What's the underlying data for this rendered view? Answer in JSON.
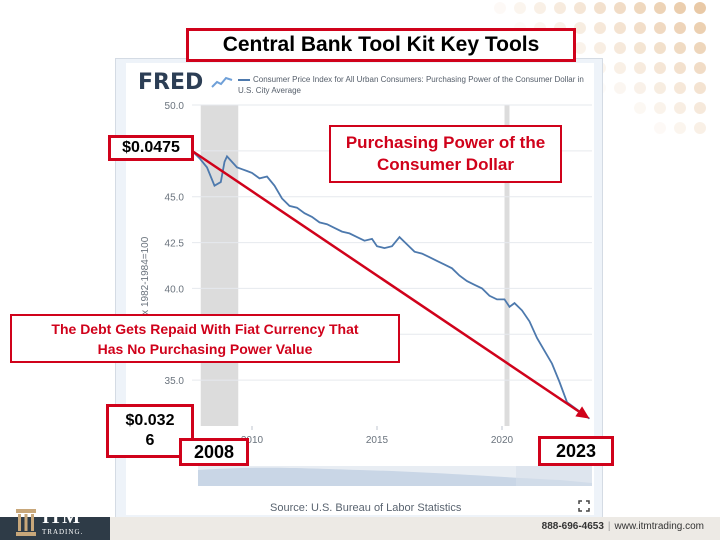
{
  "slide": {
    "title": "Central Bank Tool Kit Key Tools",
    "source": "Source: U.S. Bureau of Labor Statistics",
    "footer_phone": "888-696-4653",
    "footer_web": "www.itmtrading.com",
    "logo_text": "ITM",
    "logo_sub": "TRADING."
  },
  "fred": {
    "logo": "FRED",
    "legend": "Consumer Price Index for All Urban Consumers: Purchasing Power of the Consumer Dollar in U.S. City Average"
  },
  "annotations": {
    "start_value": "$0.0475",
    "end_value": "$0.032\n6",
    "start_year": "2008",
    "end_year": "2023",
    "headline": "Purchasing Power of the Consumer Dollar",
    "message": "The Debt Gets Repaid With Fiat Currency That Has No Purchasing Power Value"
  },
  "colors": {
    "accent_red": "#d0021b",
    "series_blue": "#4d79ad",
    "recession_gray": "#dcdcdc"
  },
  "chart_data": {
    "type": "line",
    "ylabel": "Index 1982-1984=100",
    "ylim": [
      32.5,
      50.0
    ],
    "xlim": [
      2007.6,
      2023.6
    ],
    "yticks": [
      35.0,
      37.5,
      40.0,
      42.5,
      45.0,
      47.5,
      50.0
    ],
    "ytick_labels": [
      "35.0",
      "",
      "40.0",
      "42.5",
      "45.0",
      "",
      "50.0"
    ],
    "xticks": [
      2010,
      2015,
      2020
    ],
    "xtick_labels": [
      "2010",
      "2015",
      "2020"
    ],
    "recession_shading": [
      [
        2007.95,
        2009.45
      ],
      [
        2020.1,
        2020.3
      ]
    ],
    "series": [
      {
        "x": [
          2007.6,
          2007.9,
          2008.2,
          2008.5,
          2008.75,
          2008.9,
          2009.0,
          2009.2,
          2009.4,
          2009.6,
          2009.8,
          2010.0,
          2010.3,
          2010.6,
          2010.9,
          2011.2,
          2011.5,
          2011.8,
          2012.1,
          2012.4,
          2012.7,
          2013.0,
          2013.3,
          2013.6,
          2013.9,
          2014.2,
          2014.5,
          2014.8,
          2015.0,
          2015.3,
          2015.6,
          2015.9,
          2016.2,
          2016.5,
          2016.8,
          2017.1,
          2017.4,
          2017.7,
          2018.0,
          2018.3,
          2018.6,
          2018.9,
          2019.2,
          2019.5,
          2019.8,
          2020.1,
          2020.3,
          2020.5,
          2020.8,
          2021.1,
          2021.4,
          2021.7,
          2022.0,
          2022.3,
          2022.6,
          2022.9,
          2023.2,
          2023.5
        ],
        "values": [
          47.5,
          47.1,
          46.6,
          45.6,
          45.8,
          46.9,
          47.2,
          46.9,
          46.6,
          46.5,
          46.4,
          46.3,
          46.0,
          46.1,
          45.6,
          44.9,
          44.5,
          44.4,
          44.1,
          43.9,
          43.6,
          43.5,
          43.3,
          43.1,
          43.0,
          42.8,
          42.6,
          42.7,
          42.3,
          42.2,
          42.3,
          42.8,
          42.4,
          42.0,
          41.9,
          41.7,
          41.5,
          41.3,
          41.1,
          40.7,
          40.4,
          40.2,
          40.0,
          39.6,
          39.4,
          39.4,
          39.0,
          39.2,
          38.8,
          38.2,
          37.3,
          36.6,
          35.9,
          34.9,
          33.8,
          33.5,
          33.2,
          32.9
        ]
      }
    ]
  }
}
